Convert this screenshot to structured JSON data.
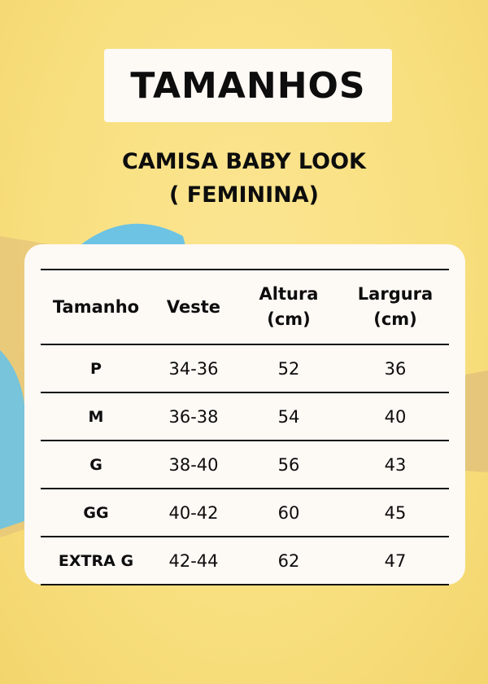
{
  "title": "TAMANHOS",
  "subtitle_line1": "CAMISA BABY LOOK",
  "subtitle_line2": "( FEMININA)",
  "colors": {
    "background": "#f8df7e",
    "card": "#fdf9f5",
    "text": "#0d0d0d",
    "tape_blue": "#6cc3e4",
    "tape_tan": "#e5c67a"
  },
  "table": {
    "headers": [
      {
        "line1": "Tamanho",
        "line2": ""
      },
      {
        "line1": "Veste",
        "line2": ""
      },
      {
        "line1": "Altura",
        "line2": "(cm)"
      },
      {
        "line1": "Largura",
        "line2": "(cm)"
      }
    ],
    "rows": [
      [
        "P",
        "34-36",
        "52",
        "36"
      ],
      [
        "M",
        "36-38",
        "54",
        "40"
      ],
      [
        "G",
        "38-40",
        "56",
        "43"
      ],
      [
        "GG",
        "40-42",
        "60",
        "45"
      ],
      [
        "EXTRA G",
        "42-44",
        "62",
        "47"
      ]
    ]
  }
}
